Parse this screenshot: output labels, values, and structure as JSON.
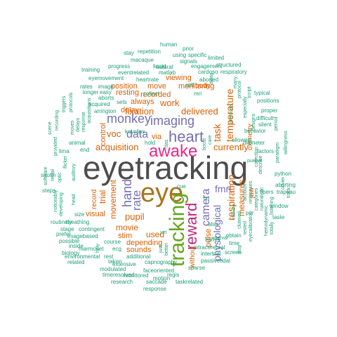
{
  "palette": {
    "c1": "#4d4d4d",
    "c2": "#d95f02",
    "c3": "#e7298a",
    "c4": "#66a61e",
    "c5": "#7570b3",
    "c6": "#a6761d",
    "c7": "#1b9e77",
    "c8": "#c0267c"
  },
  "words": [
    {
      "t": "eyetracking",
      "c": "c1"
    },
    {
      "t": "eye",
      "c": "c6"
    },
    {
      "t": "awake",
      "c": "c3"
    },
    {
      "t": "tracking",
      "c": "c4"
    },
    {
      "t": "reward",
      "c": "c8"
    },
    {
      "t": "heart",
      "c": "c5"
    },
    {
      "t": "monkey",
      "c": "c5"
    },
    {
      "t": "imaging",
      "c": "c5"
    },
    {
      "t": "data",
      "c": "c5"
    },
    {
      "t": "hand",
      "c": "c5"
    },
    {
      "t": "rate",
      "c": "c5"
    },
    {
      "t": "camera",
      "c": "c5"
    },
    {
      "t": "fmri",
      "c": "c5"
    },
    {
      "t": "physiological",
      "c": "c5"
    },
    {
      "t": "respiration",
      "c": "c2"
    },
    {
      "t": "temperature",
      "c": "c2"
    },
    {
      "t": "task",
      "c": "c2"
    },
    {
      "t": "delivered",
      "c": "c2"
    },
    {
      "t": "fixation",
      "c": "c2"
    },
    {
      "t": "voc",
      "c": "c2"
    },
    {
      "t": "work",
      "c": "c2"
    },
    {
      "t": "acquisition",
      "c": "c2"
    },
    {
      "t": "currently",
      "c": "c2"
    },
    {
      "t": "measures",
      "c": "c2"
    },
    {
      "t": "pupil",
      "c": "c2"
    },
    {
      "t": "movie",
      "c": "c2"
    },
    {
      "t": "used",
      "c": "c2"
    },
    {
      "t": "movement",
      "c": "c2"
    },
    {
      "t": "trial",
      "c": "c2"
    },
    {
      "t": "pulse",
      "c": "c2"
    },
    {
      "t": "jaw",
      "c": "c2"
    },
    {
      "t": "oximetry",
      "c": "c2"
    },
    {
      "t": "imaging",
      "c": "c2"
    },
    {
      "t": "recorded",
      "c": "c2"
    },
    {
      "t": "always",
      "c": "c2"
    },
    {
      "t": "delay",
      "c": "c2"
    },
    {
      "t": "resting",
      "c": "c2"
    },
    {
      "t": "position",
      "c": "c2"
    },
    {
      "t": "move",
      "c": "c2"
    },
    {
      "t": "viewing",
      "c": "c2"
    },
    {
      "t": "monitoring",
      "c": "c2"
    },
    {
      "t": "control",
      "c": "c2"
    },
    {
      "t": "record",
      "c": "c2"
    },
    {
      "t": "visual",
      "c": "c2"
    },
    {
      "t": "stim",
      "c": "c2"
    },
    {
      "t": "sounds",
      "c": "c2"
    },
    {
      "t": "depending",
      "c": "c2"
    },
    {
      "t": "without",
      "c": "c2"
    },
    {
      "t": "via",
      "c": "c2"
    },
    {
      "t": "body",
      "c": "c2"
    },
    {
      "t": "allowed",
      "c": "c7"
    },
    {
      "t": "diameter",
      "c": "c7"
    },
    {
      "t": "behavior",
      "c": "c7"
    },
    {
      "t": "difficult",
      "c": "c7"
    },
    {
      "t": "factors",
      "c": "c7"
    },
    {
      "t": "silent",
      "c": "c7"
    },
    {
      "t": "proper",
      "c": "c7"
    },
    {
      "t": "positions",
      "c": "c7"
    },
    {
      "t": "typical",
      "c": "c7"
    },
    {
      "t": "period",
      "c": "c7"
    },
    {
      "t": "script",
      "c": "c7"
    },
    {
      "t": "designs",
      "c": "c7"
    },
    {
      "t": "especially",
      "c": "c7"
    },
    {
      "t": "protocol",
      "c": "c7"
    },
    {
      "t": "protocols",
      "c": "c7"
    },
    {
      "t": "many",
      "c": "c7"
    },
    {
      "t": "collection",
      "c": "c7"
    },
    {
      "t": "paradigm",
      "c": "c7"
    },
    {
      "t": "willingness",
      "c": "c7"
    },
    {
      "t": "python",
      "c": "c7"
    },
    {
      "t": "olivier",
      "c": "c7"
    },
    {
      "t": "track",
      "c": "c7"
    },
    {
      "t": "trapeau",
      "c": "c7"
    },
    {
      "t": "window",
      "c": "c7"
    },
    {
      "t": "taste",
      "c": "c7"
    },
    {
      "t": "listening",
      "c": "c7"
    },
    {
      "t": "fibers",
      "c": "c7"
    },
    {
      "t": "naturalistic",
      "c": "c7"
    },
    {
      "t": "describe",
      "c": "c7"
    },
    {
      "t": "categories",
      "c": "c7"
    },
    {
      "t": "hemodynamic",
      "c": "c7"
    },
    {
      "t": "totally",
      "c": "c7"
    },
    {
      "t": "eyecalibration",
      "c": "c7"
    },
    {
      "t": "account",
      "c": "c7"
    },
    {
      "t": "responses",
      "c": "c7"
    },
    {
      "t": "per",
      "c": "c7"
    },
    {
      "t": "reduce",
      "c": "c7"
    },
    {
      "t": "clutered",
      "c": "c7"
    },
    {
      "t": "tested",
      "c": "c7"
    },
    {
      "t": "time",
      "c": "c7"
    },
    {
      "t": "obtain",
      "c": "c7"
    },
    {
      "t": "stop",
      "c": "c7"
    },
    {
      "t": "also",
      "c": "c7"
    },
    {
      "t": "hrf",
      "c": "c7"
    },
    {
      "t": "interval",
      "c": "c7"
    },
    {
      "t": "ephys",
      "c": "c7"
    },
    {
      "t": "intracerebral",
      "c": "c7"
    },
    {
      "t": "screen",
      "c": "c7"
    },
    {
      "t": "intertrial",
      "c": "c7"
    },
    {
      "t": "passivetidal",
      "c": "c7"
    },
    {
      "t": "sparse",
      "c": "c7"
    },
    {
      "t": "taskrelated",
      "c": "c7"
    },
    {
      "t": "response",
      "c": "c7"
    },
    {
      "t": "regis",
      "c": "c7"
    },
    {
      "t": "motion",
      "c": "c7"
    },
    {
      "t": "research",
      "c": "c7"
    },
    {
      "t": "saccade",
      "c": "c7"
    },
    {
      "t": "faceoriented",
      "c": "c7"
    },
    {
      "t": "capnography",
      "c": "c7"
    },
    {
      "t": "monitored",
      "c": "c7"
    },
    {
      "t": "timeresolved",
      "c": "c7"
    },
    {
      "t": "modulated",
      "c": "c7"
    },
    {
      "t": "extensive",
      "c": "c7"
    },
    {
      "t": "additional",
      "c": "c7"
    },
    {
      "t": "better",
      "c": "c7"
    },
    {
      "t": "yet",
      "c": "c7"
    },
    {
      "t": "just",
      "c": "c7"
    },
    {
      "t": "rest",
      "c": "c7"
    },
    {
      "t": "taken",
      "c": "c7"
    },
    {
      "t": "environmental",
      "c": "c7"
    },
    {
      "t": "related",
      "c": "c7"
    },
    {
      "t": "holy",
      "c": "c7"
    },
    {
      "t": "marmoset",
      "c": "c7"
    },
    {
      "t": "ecg",
      "c": "c7"
    },
    {
      "t": "course",
      "c": "c7"
    },
    {
      "t": "imagebased",
      "c": "c7"
    },
    {
      "t": "stage",
      "c": "c7"
    },
    {
      "t": "contingent",
      "c": "c7"
    },
    {
      "t": "routinely",
      "c": "c7"
    },
    {
      "t": "size",
      "c": "c7"
    },
    {
      "t": "prefer",
      "c": "c7"
    },
    {
      "t": "inside",
      "c": "c7"
    },
    {
      "t": "biology",
      "c": "c7"
    },
    {
      "t": "possible",
      "c": "c7"
    },
    {
      "t": "breathing",
      "c": "c7"
    },
    {
      "t": "head",
      "c": "c7"
    },
    {
      "t": "developing",
      "c": "c7"
    },
    {
      "t": "noticeably",
      "c": "c7"
    },
    {
      "t": "steps",
      "c": "c7"
    },
    {
      "t": "sirotin",
      "c": "c7"
    },
    {
      "t": "software",
      "c": "c7"
    },
    {
      "t": "rectal",
      "c": "c7"
    },
    {
      "t": "optic",
      "c": "c7"
    },
    {
      "t": "lima",
      "c": "c7"
    },
    {
      "t": "flicker",
      "c": "c7"
    },
    {
      "t": "auditory",
      "c": "c7"
    },
    {
      "t": "end",
      "c": "c7"
    },
    {
      "t": "window",
      "c": "c7"
    },
    {
      "t": "provided",
      "c": "c7"
    },
    {
      "t": "scene",
      "c": "c7"
    },
    {
      "t": "recording",
      "c": "c7"
    },
    {
      "t": "triggers",
      "c": "c7"
    },
    {
      "t": "moves",
      "c": "c7"
    },
    {
      "t": "animal",
      "c": "c7"
    },
    {
      "t": "delays",
      "c": "c7"
    },
    {
      "t": "protocols",
      "c": "c7"
    },
    {
      "t": "response",
      "c": "c7"
    },
    {
      "t": "acquisitions",
      "c": "c7"
    },
    {
      "t": "longer",
      "c": "c7"
    },
    {
      "t": "rates",
      "c": "c7"
    },
    {
      "t": "image",
      "c": "c7"
    },
    {
      "t": "easy",
      "c": "c7"
    },
    {
      "t": "aborts",
      "c": "c7"
    },
    {
      "t": "acquired",
      "c": "c7"
    },
    {
      "t": "arrington",
      "c": "c7"
    },
    {
      "t": "sets",
      "c": "c7"
    },
    {
      "t": "eyemovement",
      "c": "c7"
    },
    {
      "t": "training",
      "c": "c7"
    },
    {
      "t": "progress",
      "c": "c7"
    },
    {
      "t": "eventrelated",
      "c": "c7"
    },
    {
      "t": "stay",
      "c": "c7"
    },
    {
      "t": "repetition",
      "c": "c7"
    },
    {
      "t": "macaque",
      "c": "c7"
    },
    {
      "t": "liquid",
      "c": "c7"
    },
    {
      "t": "human",
      "c": "c7"
    },
    {
      "t": "using",
      "c": "c7"
    },
    {
      "t": "prior",
      "c": "c7"
    },
    {
      "t": "specific",
      "c": "c7"
    },
    {
      "t": "signals",
      "c": "c7"
    },
    {
      "t": "natural",
      "c": "c7"
    },
    {
      "t": "engagement",
      "c": "c7"
    },
    {
      "t": "limited",
      "c": "c7"
    },
    {
      "t": "structured",
      "c": "c7"
    },
    {
      "t": "respiratory",
      "c": "c7"
    },
    {
      "t": "matlab",
      "c": "c7"
    },
    {
      "t": "cardoso",
      "c": "c7"
    },
    {
      "t": "heartrate",
      "c": "c7"
    },
    {
      "t": "aborted",
      "c": "c7"
    },
    {
      "t": "collect",
      "c": "c7"
    },
    {
      "t": "away",
      "c": "c7"
    },
    {
      "t": "stiff",
      "c": "c7"
    },
    {
      "t": "mri",
      "c": "c7"
    },
    {
      "t": "keyclips",
      "c": "c7"
    },
    {
      "t": "hold",
      "c": "c7"
    },
    {
      "t": "das",
      "c": "c7"
    },
    {
      "t": "cue",
      "c": "c7"
    },
    {
      "t": "care",
      "c": "c7"
    },
    {
      "t": "boost",
      "c": "c7"
    },
    {
      "t": "pursuit",
      "c": "c7"
    },
    {
      "t": "aborting",
      "c": "c7"
    },
    {
      "t": "nerve",
      "c": "c7"
    }
  ]
}
